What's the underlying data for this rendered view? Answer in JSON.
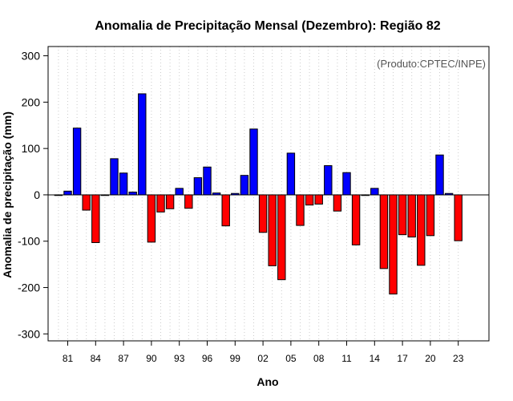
{
  "chart_data": {
    "type": "bar",
    "title": "Anomalia de Precipitação Mensal (Dezembro): Região 82",
    "xlabel": "Ano",
    "ylabel": "Anomalia de precipitação (mm)",
    "annotation": "(Produto:CPTEC/INPE)",
    "ylim": [
      -315,
      320
    ],
    "yticks": [
      -300,
      -200,
      -100,
      0,
      100,
      200,
      300
    ],
    "years": [
      1980,
      1981,
      1982,
      1983,
      1984,
      1985,
      1986,
      1987,
      1988,
      1989,
      1990,
      1991,
      1992,
      1993,
      1994,
      1995,
      1996,
      1997,
      1998,
      1999,
      2000,
      2001,
      2002,
      2003,
      2004,
      2005,
      2006,
      2007,
      2008,
      2009,
      2010,
      2011,
      2012,
      2013,
      2014,
      2015,
      2016,
      2017,
      2018,
      2019,
      2020,
      2021,
      2022,
      2023
    ],
    "values": [
      -1,
      8,
      144,
      -33,
      -103,
      -1,
      78,
      47,
      6,
      218,
      -102,
      -37,
      -30,
      14,
      -29,
      37,
      60,
      4,
      -67,
      3,
      42,
      142,
      -81,
      -153,
      -183,
      90,
      -66,
      -22,
      -20,
      63,
      -35,
      48,
      -108,
      -1,
      14,
      -159,
      -214,
      -86,
      -91,
      -152,
      -88,
      86,
      3,
      -99
    ],
    "tick_labels": [
      "81",
      "84",
      "87",
      "90",
      "93",
      "96",
      "99",
      "02",
      "05",
      "08",
      "11",
      "14",
      "17",
      "20",
      "23"
    ],
    "tick_years": [
      1981,
      1984,
      1987,
      1990,
      1993,
      1996,
      1999,
      2002,
      2005,
      2008,
      2011,
      2014,
      2017,
      2020,
      2023
    ],
    "colors": {
      "positive": "#0000ff",
      "negative": "#ff0000",
      "zero_line": "#000000",
      "grid": "#cccccc"
    }
  }
}
